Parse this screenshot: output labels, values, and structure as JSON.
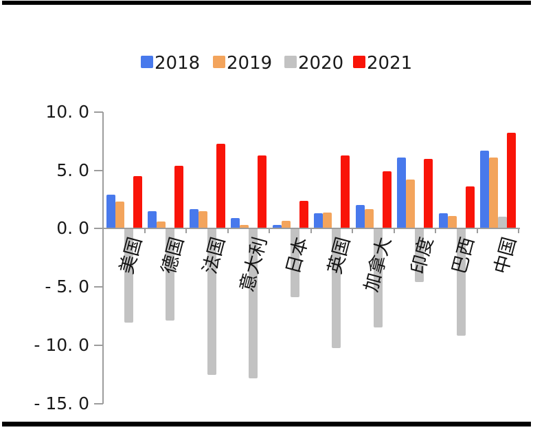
{
  "frame": {
    "rule_color": "#000000"
  },
  "colors": {
    "axis": "#9c9c9c",
    "text": "#1a1a1a",
    "background": "#ffffff"
  },
  "chart_data": {
    "type": "bar",
    "title": "",
    "xlabel": "",
    "ylabel": "",
    "grid": false,
    "legend_position": "top",
    "categories": [
      "美国",
      "德国",
      "法国",
      "意大利",
      "日本",
      "英国",
      "加拿大",
      "印度",
      "巴西",
      "中国"
    ],
    "series": [
      {
        "name": "2018",
        "color": "#4879ec",
        "values": [
          2.9,
          1.5,
          1.7,
          0.9,
          0.3,
          1.3,
          2.0,
          6.1,
          1.3,
          6.7
        ]
      },
      {
        "name": "2019",
        "color": "#f3a45c",
        "values": [
          2.3,
          0.6,
          1.5,
          0.3,
          0.7,
          1.4,
          1.7,
          4.2,
          1.1,
          6.1
        ]
      },
      {
        "name": "2020",
        "color": "#c2c2c2",
        "values": [
          -8.0,
          -7.8,
          -12.5,
          -12.8,
          -5.8,
          -10.2,
          -8.4,
          -4.5,
          -9.1,
          1.0
        ]
      },
      {
        "name": "2021",
        "color": "#f91408",
        "values": [
          4.5,
          5.4,
          7.3,
          6.3,
          2.4,
          6.3,
          4.9,
          6.0,
          3.6,
          8.2
        ]
      }
    ],
    "ylim": [
      -15,
      10
    ],
    "yticks": [
      10,
      5,
      0,
      -5,
      -10,
      -15
    ],
    "ytick_labels": [
      "10. 0",
      "5. 0",
      "0. 0",
      "- 5. 0",
      "- 10. 0",
      "- 15. 0"
    ]
  },
  "legend_items": [
    "2018",
    "2019",
    "2020",
    "2021"
  ]
}
